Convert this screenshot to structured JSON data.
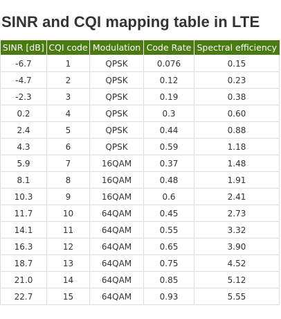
{
  "title": "SINR and CQI mapping table in LTE",
  "colors": {
    "header_bg": "#4a7a12",
    "header_text": "#ffffff",
    "title_text": "#333333",
    "grid_line": "#dddddd"
  },
  "table": {
    "columns": [
      "SINR [dB]",
      "CQI code",
      "Modulation",
      "Code Rate",
      "Spectral efficiency"
    ],
    "rows": [
      [
        "-6.7",
        "1",
        "QPSK",
        "0.076",
        "0.15"
      ],
      [
        "-4.7",
        "2",
        "QPSK",
        "0.12",
        "0.23"
      ],
      [
        "-2.3",
        "3",
        "QPSK",
        "0.19",
        "0.38"
      ],
      [
        "0.2",
        "4",
        "QPSK",
        "0.3",
        "0.60"
      ],
      [
        "2.4",
        "5",
        "QPSK",
        "0.44",
        "0.88"
      ],
      [
        "4.3",
        "6",
        "QPSK",
        "0.59",
        "1.18"
      ],
      [
        "5.9",
        "7",
        "16QAM",
        "0.37",
        "1.48"
      ],
      [
        "8.1",
        "8",
        "16QAM",
        "0.48",
        "1.91"
      ],
      [
        "10.3",
        "9",
        "16QAM",
        "0.6",
        "2.41"
      ],
      [
        "11.7",
        "10",
        "64QAM",
        "0.45",
        "2.73"
      ],
      [
        "14.1",
        "11",
        "64QAM",
        "0.55",
        "3.32"
      ],
      [
        "16.3",
        "12",
        "64QAM",
        "0.65",
        "3.90"
      ],
      [
        "18.7",
        "13",
        "64QAM",
        "0.75",
        "4.52"
      ],
      [
        "21.0",
        "14",
        "64QAM",
        "0.85",
        "5.12"
      ],
      [
        "22.7",
        "15",
        "64QAM",
        "0.93",
        "5.55"
      ]
    ]
  }
}
